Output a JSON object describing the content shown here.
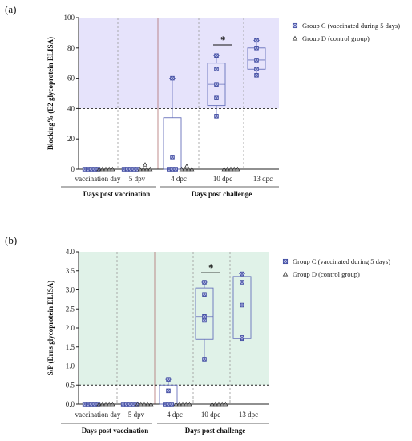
{
  "chart_data": [
    {
      "type": "box",
      "panel_label": "(a)",
      "ylabel": "Blocking% (E2 glycoprotein ELISA)",
      "ylim": [
        0,
        100
      ],
      "yticks": [
        "0",
        "20",
        "40",
        "60",
        "80",
        "100"
      ],
      "threshold": 40,
      "background": "#e6e3fb",
      "categories": [
        "vaccination day",
        "5 dpv",
        "4 dpc",
        "10 dpc",
        "13 dpc"
      ],
      "group_labels": [
        "Days post vaccination",
        "Days post challenge"
      ],
      "significance": {
        "category_index": 3,
        "symbol": "*"
      },
      "series": [
        {
          "name": "Group C (vaccinated during 5 days)",
          "marker": "square-x",
          "points": [
            [
              0,
              0,
              0,
              0,
              0
            ],
            [
              0,
              0,
              0,
              0,
              0
            ],
            [
              0,
              0,
              0,
              8,
              60
            ],
            [
              35,
              47,
              56,
              66,
              75
            ],
            [
              62,
              66,
              72,
              80,
              85
            ]
          ],
          "boxes": [
            null,
            null,
            {
              "q1": 0,
              "median": 0,
              "q3": 34,
              "whisker_low": 0,
              "whisker_high": 60
            },
            {
              "q1": 42,
              "median": 56,
              "q3": 70,
              "whisker_low": 35,
              "whisker_high": 75
            },
            {
              "q1": 66,
              "median": 72,
              "q3": 80,
              "whisker_low": 62,
              "whisker_high": 85
            }
          ]
        },
        {
          "name": "Group D (control group)",
          "marker": "triangle",
          "points": [
            [
              0,
              0,
              0,
              0,
              0
            ],
            [
              0,
              0,
              0,
              0,
              3
            ],
            [
              0,
              0,
              0,
              0,
              2
            ],
            [
              0,
              0,
              0,
              0,
              0
            ],
            []
          ],
          "boxes": [
            null,
            null,
            null,
            null,
            null
          ]
        }
      ]
    },
    {
      "type": "box",
      "panel_label": "(b)",
      "ylabel": "S/P (Erns glycoprotein ELISA)",
      "ylim": [
        0,
        4.0
      ],
      "yticks": [
        "0.0",
        "0.5",
        "1.0",
        "1.5",
        "2.0",
        "2.5",
        "3.0",
        "3.5",
        "4.0"
      ],
      "threshold": 0.5,
      "background": "#e0f2e8",
      "categories": [
        "vaccination day",
        "5 dpv",
        "4 dpc",
        "10 dpc",
        "13 dpc"
      ],
      "group_labels": [
        "Days post vaccination",
        "Days post challenge"
      ],
      "significance": {
        "category_index": 3,
        "symbol": "*"
      },
      "series": [
        {
          "name": "Group C (vaccinated during 5 days)",
          "marker": "square-x",
          "points": [
            [
              0,
              0,
              0,
              0,
              0
            ],
            [
              0,
              0,
              0,
              0,
              0
            ],
            [
              0,
              0,
              0,
              0.35,
              0.65
            ],
            [
              1.18,
              2.2,
              2.3,
              2.88,
              3.2
            ],
            [
              1.72,
              1.75,
              2.6,
              3.2,
              3.42
            ]
          ],
          "boxes": [
            null,
            null,
            {
              "q1": 0,
              "median": 0,
              "q3": 0.5,
              "whisker_low": 0,
              "whisker_high": 0.65
            },
            {
              "q1": 1.7,
              "median": 2.3,
              "q3": 3.05,
              "whisker_low": 1.18,
              "whisker_high": 3.2
            },
            {
              "q1": 1.72,
              "median": 2.6,
              "q3": 3.35,
              "whisker_low": 1.72,
              "whisker_high": 3.42
            }
          ]
        },
        {
          "name": "Group D (control group)",
          "marker": "triangle",
          "points": [
            [
              0,
              0,
              0,
              0,
              0
            ],
            [
              0,
              0,
              0,
              0,
              0
            ],
            [
              0,
              0,
              0,
              0,
              0
            ],
            [
              0,
              0,
              0,
              0,
              0
            ],
            []
          ],
          "boxes": [
            null,
            null,
            null,
            null,
            null
          ]
        }
      ]
    }
  ],
  "legend": {
    "group_c": "Group C (vaccinated during 5 days)",
    "group_d": "Group D (control group)"
  },
  "colors": {
    "marker": "#3f4aa0",
    "box": "#6670bb",
    "threshold": "#222222"
  }
}
